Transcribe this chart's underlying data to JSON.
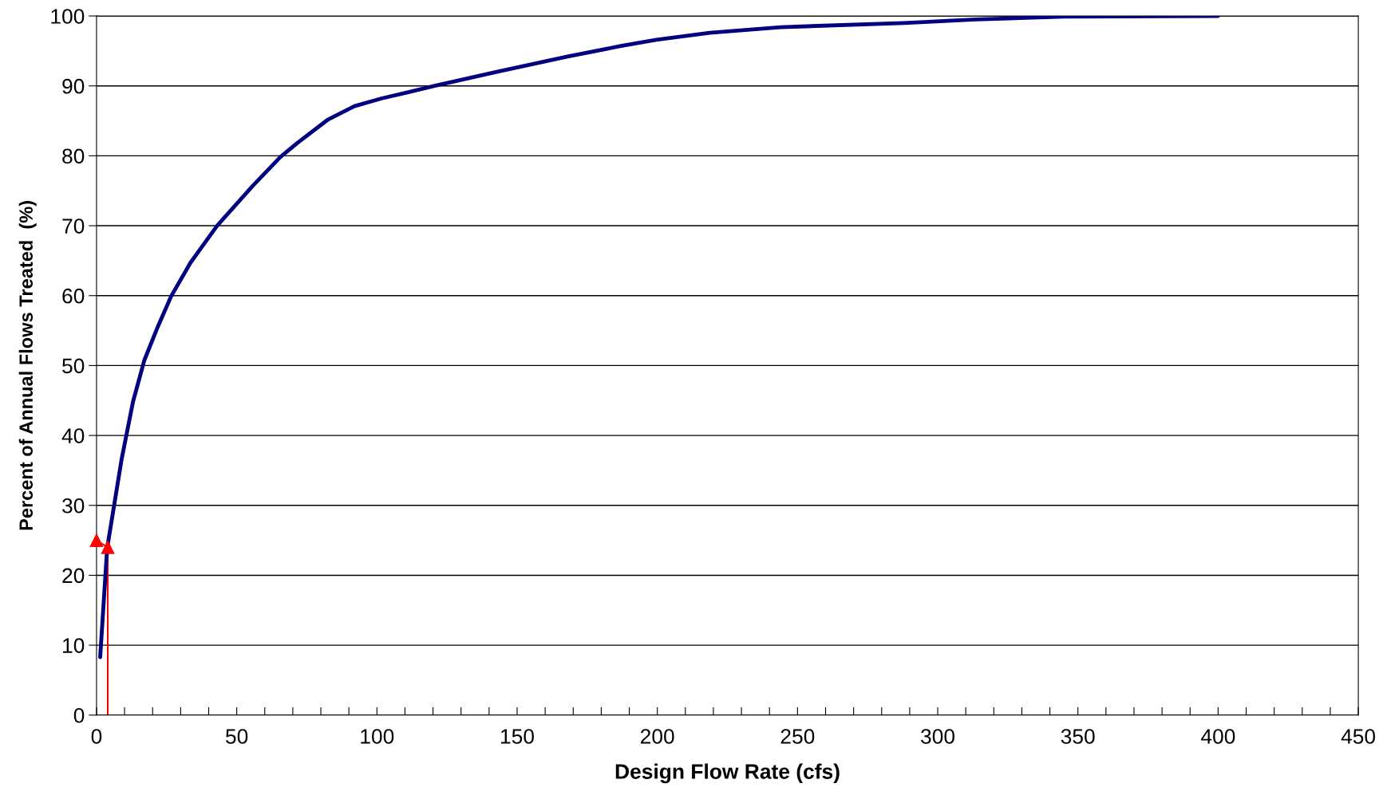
{
  "chart_data": {
    "type": "line",
    "xlabel": "Design Flow Rate (cfs)",
    "ylabel": "Percent of Annual Flows Treated  (%)",
    "series": [
      {
        "color": "#000080",
        "x": [
          1.3,
          3.8,
          8.9,
          13,
          17,
          21.8,
          26.6,
          33.5,
          43,
          55.7,
          65.5,
          71.5,
          82.6,
          92,
          101.6,
          120.6,
          142.7,
          168,
          187,
          199.7,
          218.7,
          244,
          288,
          313.6,
          345,
          400
        ],
        "values": [
          8.3,
          23.9,
          36.5,
          44.8,
          50.7,
          55.5,
          59.9,
          64.7,
          70,
          75.7,
          79.8,
          81.8,
          85.2,
          87.1,
          88.2,
          90,
          92,
          94.2,
          95.7,
          96.6,
          97.6,
          98.4,
          99.0,
          99.5,
          99.9,
          100
        ]
      },
      {
        "type": "line",
        "marker": "triangle",
        "color": "#ff0000",
        "x": [
          4,
          4,
          0
        ],
        "values": [
          0,
          24,
          25
        ]
      }
    ],
    "xlim": [
      0,
      450
    ],
    "ylim": [
      0,
      100
    ],
    "xticks": [
      0,
      {
        "value": 10,
        "label": null
      },
      {
        "value": 20,
        "label": null
      },
      {
        "value": 30,
        "label": null
      },
      {
        "value": 40,
        "label": null
      },
      50,
      {
        "value": 60,
        "label": null
      },
      {
        "value": 70,
        "label": null
      },
      {
        "value": 80,
        "label": null
      },
      {
        "value": 90,
        "label": null
      },
      100,
      {
        "value": 110,
        "label": null
      },
      {
        "value": 120,
        "label": null
      },
      {
        "value": 130,
        "label": null
      },
      {
        "value": 140,
        "label": null
      },
      150,
      {
        "value": 160,
        "label": null
      },
      {
        "value": 170,
        "label": null
      },
      {
        "value": 180,
        "label": null
      },
      {
        "value": 190,
        "label": null
      },
      200,
      {
        "value": 210,
        "label": null
      },
      {
        "value": 220,
        "label": null
      },
      {
        "value": 230,
        "label": null
      },
      {
        "value": 240,
        "label": null
      },
      250,
      {
        "value": 260,
        "label": null
      },
      {
        "value": 270,
        "label": null
      },
      {
        "value": 280,
        "label": null
      },
      {
        "value": 290,
        "label": null
      },
      300,
      {
        "value": 310,
        "label": null
      },
      {
        "value": 320,
        "label": null
      },
      {
        "value": 330,
        "label": null
      },
      {
        "value": 340,
        "label": null
      },
      350,
      {
        "value": 360,
        "label": null
      },
      {
        "value": 370,
        "label": null
      },
      {
        "value": 380,
        "label": null
      },
      {
        "value": 390,
        "label": null
      },
      400,
      {
        "value": 410,
        "label": null
      },
      {
        "value": 420,
        "label": null
      },
      {
        "value": 430,
        "label": null
      },
      {
        "value": 440,
        "label": null
      },
      450
    ],
    "yticks": [
      0,
      10,
      20,
      30,
      40,
      50,
      60,
      70,
      80,
      90,
      100
    ],
    "grid": "y",
    "legend": false,
    "marker": "none",
    "line_style": "solid"
  }
}
